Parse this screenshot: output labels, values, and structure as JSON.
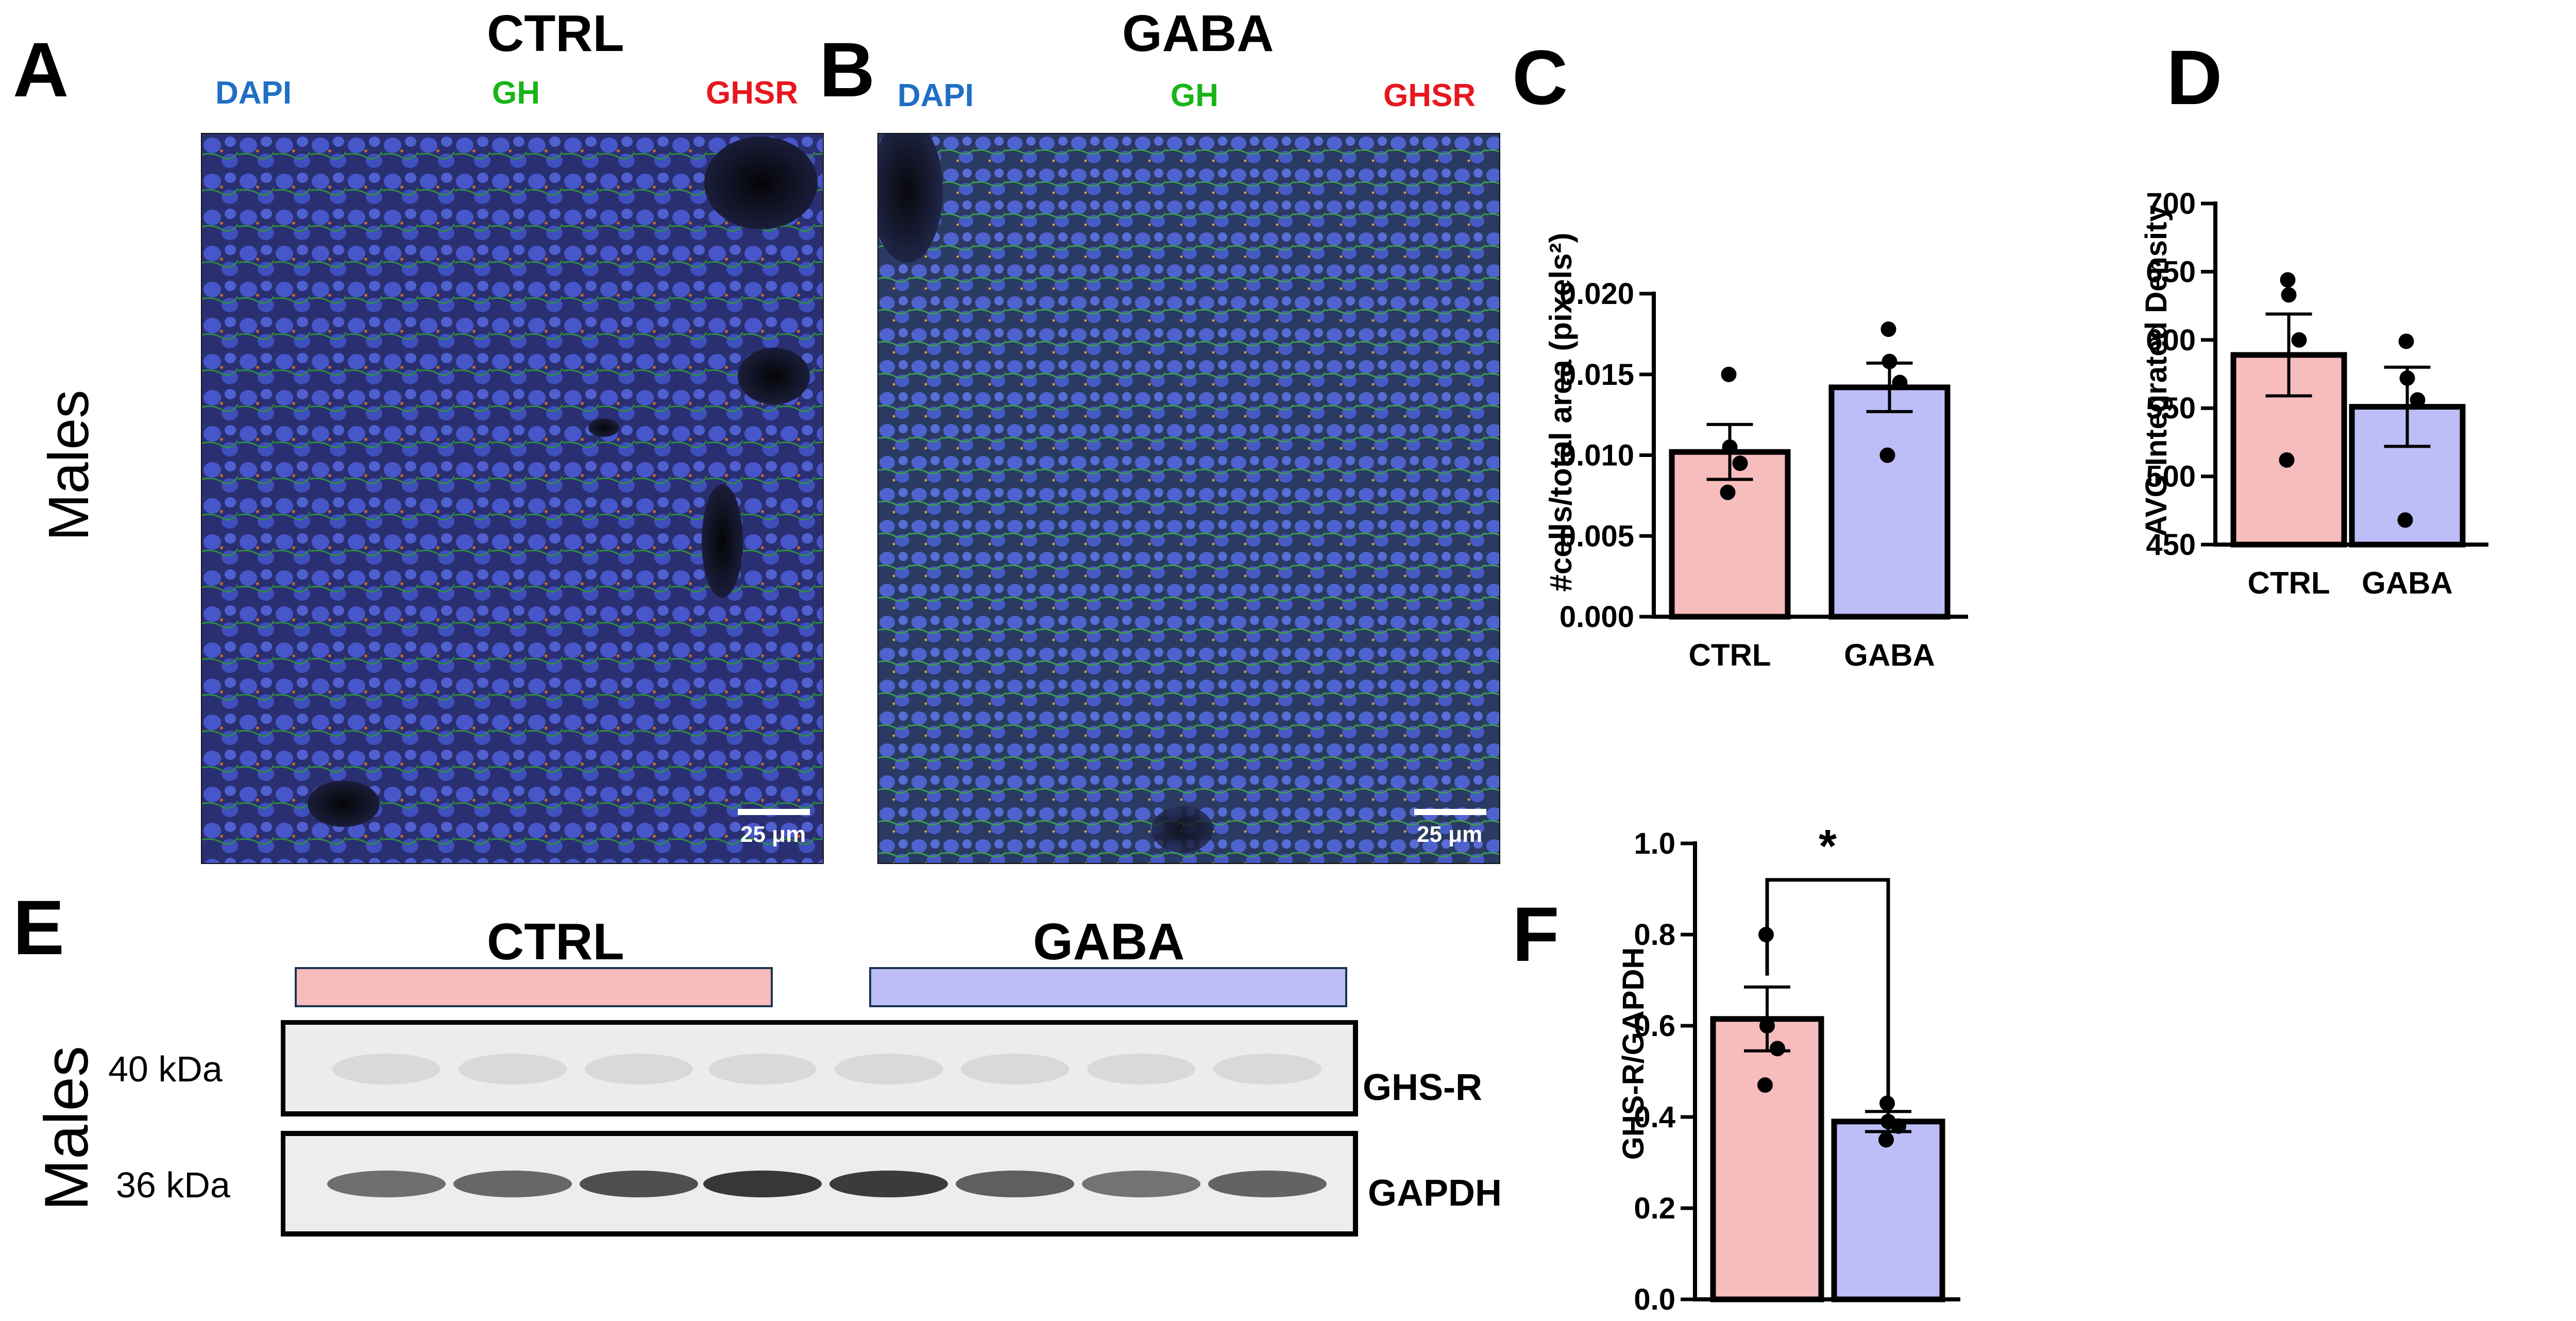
{
  "panels": {
    "A": {
      "letter": "A",
      "title": "CTRL",
      "channels": {
        "dapi": "DAPI",
        "gh": "GH",
        "ghsr": "GHSR"
      },
      "scale_bar": "25 μm"
    },
    "B": {
      "letter": "B",
      "title": "GABA",
      "channels": {
        "dapi": "DAPI",
        "gh": "GH",
        "ghsr": "GHSR"
      },
      "scale_bar": "25 μm"
    },
    "C": {
      "letter": "C"
    },
    "D": {
      "letter": "D"
    },
    "E": {
      "letter": "E",
      "groups": {
        "ctrl": "CTRL",
        "gaba": "GABA"
      },
      "kda_top": "40 kDa",
      "kda_bottom": "36 kDa",
      "band_top": "GHS-R",
      "band_bottom": "GAPDH"
    },
    "F": {
      "letter": "F"
    }
  },
  "row_labels": {
    "males_top": "Males",
    "males_bottom": "Males"
  },
  "colors": {
    "dapi": "#1f6fc5",
    "gh": "#17b517",
    "ghsr": "#e8161e",
    "ctrl_fill": "#f7bcbc",
    "gaba_fill": "#bdbdf7"
  },
  "chart_data": [
    {
      "id": "C",
      "type": "bar",
      "categories": [
        "CTRL",
        "GABA"
      ],
      "values": [
        0.0102,
        0.0142
      ],
      "sem": [
        0.0017,
        0.0015
      ],
      "points": [
        [
          0.015,
          0.0105,
          0.0095,
          0.0077
        ],
        [
          0.0178,
          0.0158,
          0.0145,
          0.01
        ]
      ],
      "ylabel": "#cells/total area  (pixels²)",
      "ylim": [
        0,
        0.02
      ],
      "yticks": [
        "0.000",
        "0.005",
        "0.010",
        "0.015",
        "0.020"
      ],
      "significance": ""
    },
    {
      "id": "D",
      "type": "bar",
      "categories": [
        "CTRL",
        "GABA"
      ],
      "values": [
        589,
        551
      ],
      "sem": [
        30,
        29
      ],
      "points": [
        [
          644,
          633,
          600,
          512
        ],
        [
          599,
          572,
          556,
          468
        ]
      ],
      "ylabel": "AVG Integrated Density",
      "ylim": [
        450,
        700
      ],
      "yticks": [
        "450",
        "500",
        "550",
        "600",
        "650",
        "700"
      ],
      "significance": ""
    },
    {
      "id": "F",
      "type": "bar",
      "categories": [
        "CTRL",
        "GABA"
      ],
      "values": [
        0.615,
        0.39
      ],
      "sem": [
        0.07,
        0.022
      ],
      "points": [
        [
          0.8,
          0.6,
          0.55,
          0.47
        ],
        [
          0.43,
          0.39,
          0.38,
          0.35
        ]
      ],
      "ylabel": "GHS-R/GAPDH",
      "ylim": [
        0,
        1
      ],
      "yticks": [
        "0.0",
        "0.2",
        "0.4",
        "0.6",
        "0.8",
        "1.0"
      ],
      "significance": "*"
    }
  ]
}
